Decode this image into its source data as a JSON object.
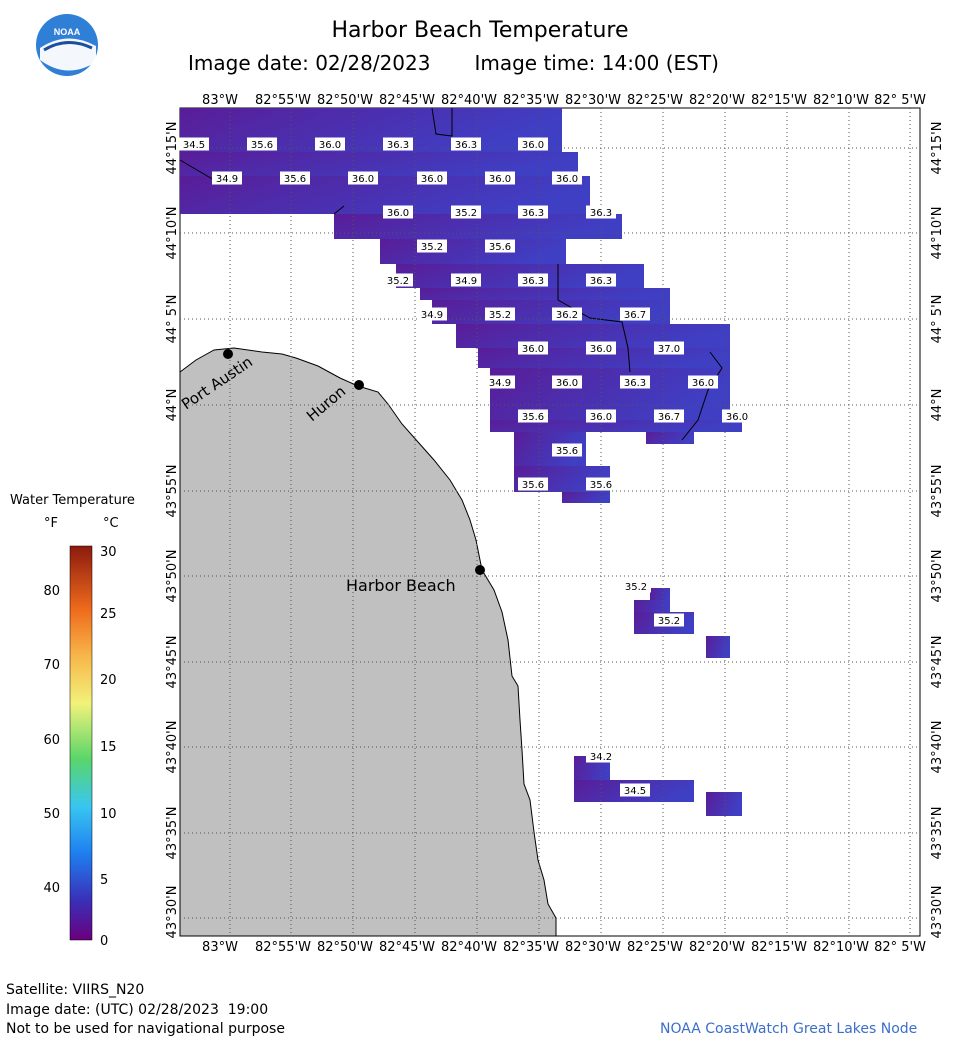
{
  "header": {
    "title": "Harbor Beach Temperature",
    "image_date_label": "Image date: 02/28/2023",
    "image_time_label": "Image time: 14:00 (EST)",
    "logo_text": "NOAA"
  },
  "map": {
    "lon_labels": [
      "83°W",
      "82°55'W",
      "82°50'W",
      "82°45'W",
      "82°40'W",
      "82°35'W",
      "82°30'W",
      "82°25'W",
      "82°20'W",
      "82°15'W",
      "82°10'W",
      "82° 5'W"
    ],
    "lat_labels": [
      "44°15'N",
      "44°10'N",
      "44° 5'N",
      "44°N",
      "43°55'N",
      "43°50'N",
      "43°45'N",
      "43°40'N",
      "43°35'N",
      "43°30'N"
    ],
    "places": [
      "Port Austin",
      "Huron",
      "Harbor Beach"
    ],
    "temperatures": [
      "34.5",
      "35.6",
      "36.0",
      "36.3",
      "36.3",
      "36.0",
      "34.9",
      "35.6",
      "36.0",
      "36.0",
      "36.0",
      "36.0",
      "36.0",
      "35.2",
      "36.3",
      "36.3",
      "35.2",
      "35.6",
      "35.2",
      "34.9",
      "36.3",
      "36.3",
      "34.9",
      "35.2",
      "36.2",
      "36.7",
      "36.0",
      "36.0",
      "37.0",
      "34.9",
      "36.0",
      "36.3",
      "36.0",
      "35.6",
      "36.0",
      "36.7",
      "36.0",
      "35.6",
      "35.6",
      "35.6",
      "35.2",
      "35.2",
      "34.2",
      "34.5"
    ],
    "colors": {
      "land": "#c0c0c0",
      "water_temp": "#4a2db3",
      "grid": "#555555"
    }
  },
  "legend": {
    "title": "Water Temperature",
    "unit_f": "°F",
    "unit_c": "°C",
    "f_ticks": [
      "80",
      "70",
      "60",
      "50",
      "40"
    ],
    "c_ticks": [
      "30",
      "25",
      "20",
      "15",
      "10",
      "5",
      "0"
    ]
  },
  "footer": {
    "satellite": "Satellite: VIIRS_N20",
    "utc_date": "Image date: (UTC) 02/28/2023  19:00",
    "disclaimer": "Not to be used for navigational purpose",
    "credit": "NOAA CoastWatch Great Lakes Node"
  }
}
